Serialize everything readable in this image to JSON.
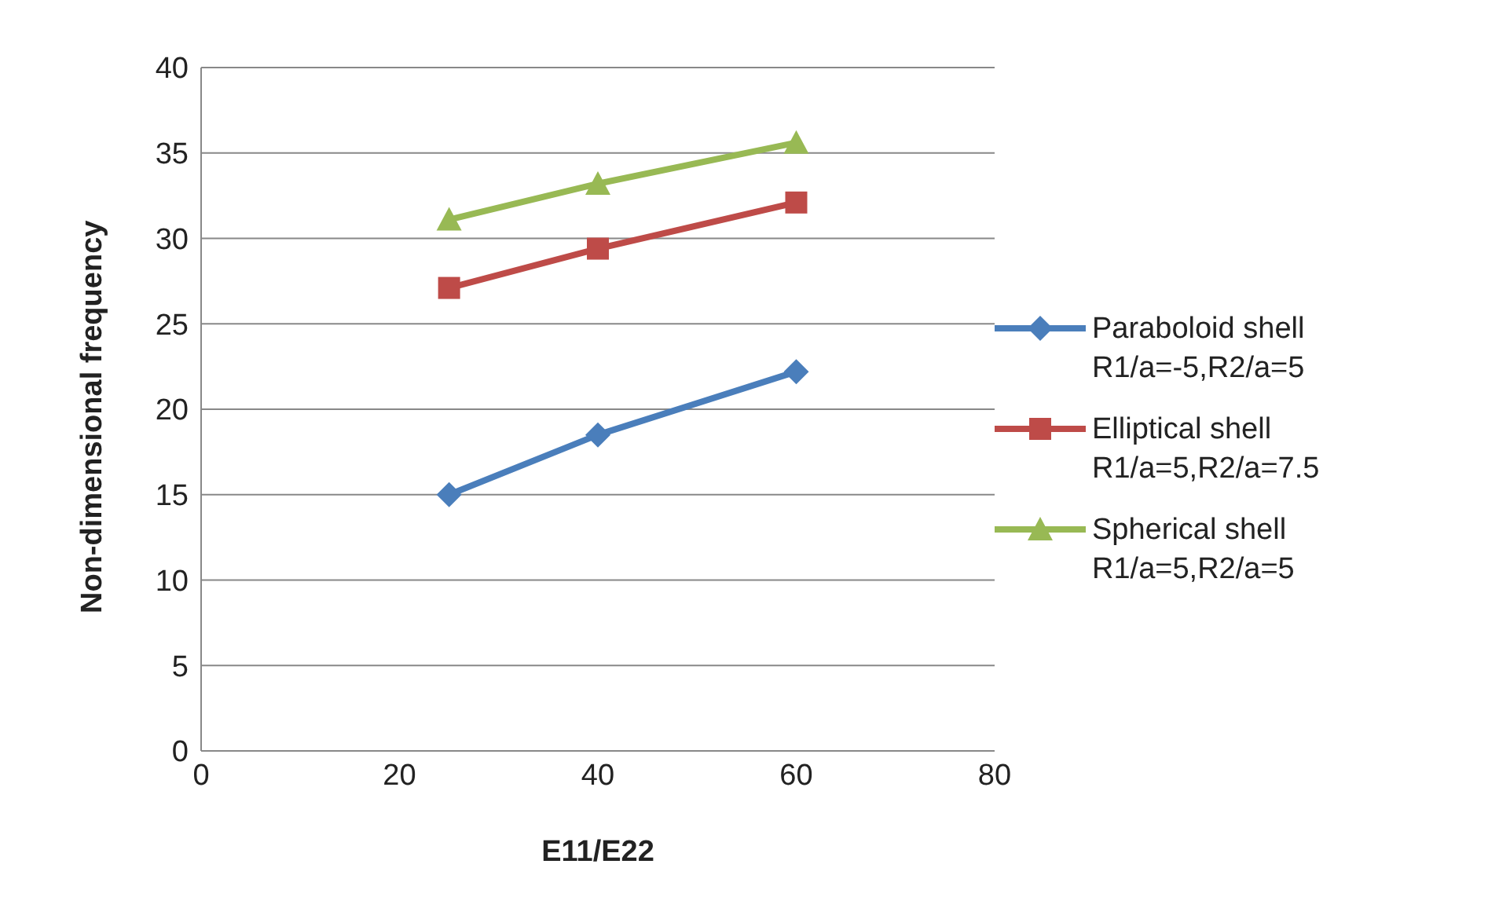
{
  "chart_data": {
    "type": "line",
    "xlabel": "E11/E22",
    "ylabel": "Non-dimensional frequency",
    "x": [
      25,
      40,
      60
    ],
    "series": [
      {
        "name": "Paraboloid shell R1/a=-5,R2/a=5",
        "color": "#4a7ebb",
        "values": [
          15,
          18.5,
          22.2
        ],
        "marker": "diamond"
      },
      {
        "name": "Elliptical shell R1/a=5,R2/a=7.5",
        "color": "#be4b48",
        "values": [
          27.1,
          29.4,
          32.1
        ],
        "marker": "square"
      },
      {
        "name": "Spherical shell R1/a=5,R2/a=5",
        "color": "#98b954",
        "values": [
          31.1,
          33.2,
          35.6
        ],
        "marker": "triangle"
      }
    ],
    "xlim": [
      0,
      80
    ],
    "xticks": [
      0,
      20,
      40,
      60,
      80
    ],
    "ylim": [
      0,
      40
    ],
    "yticks": [
      0,
      5,
      10,
      15,
      20,
      25,
      30,
      35,
      40
    ],
    "grid": "y",
    "legend": "right",
    "line_style": "solid"
  }
}
